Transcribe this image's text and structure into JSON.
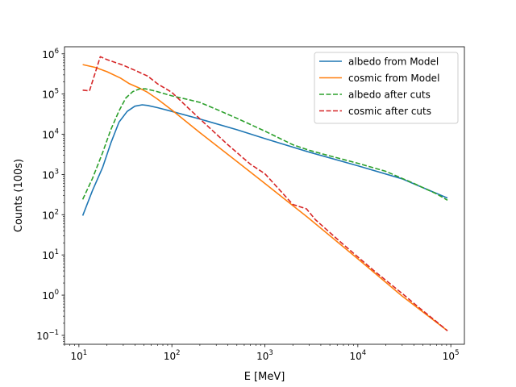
{
  "chart_data": {
    "type": "line",
    "xscale": "log",
    "yscale": "log",
    "xlabel": "E [MeV]",
    "ylabel": "Counts (100s)",
    "xlim": [
      7,
      140000
    ],
    "ylim": [
      0.06,
      1500000
    ],
    "x_ticks": [
      {
        "value": 10,
        "base": "10",
        "exp": "1"
      },
      {
        "value": 100,
        "base": "10",
        "exp": "2"
      },
      {
        "value": 1000,
        "base": "10",
        "exp": "3"
      },
      {
        "value": 10000,
        "base": "10",
        "exp": "4"
      },
      {
        "value": 100000,
        "base": "10",
        "exp": "5"
      }
    ],
    "y_ticks": [
      {
        "value": 0.1,
        "base": "10",
        "exp": "−1"
      },
      {
        "value": 1,
        "base": "10",
        "exp": "0"
      },
      {
        "value": 10,
        "base": "10",
        "exp": "1"
      },
      {
        "value": 100,
        "base": "10",
        "exp": "2"
      },
      {
        "value": 1000,
        "base": "10",
        "exp": "3"
      },
      {
        "value": 10000,
        "base": "10",
        "exp": "4"
      },
      {
        "value": 100000,
        "base": "10",
        "exp": "5"
      },
      {
        "value": 1000000,
        "base": "10",
        "exp": "6"
      }
    ],
    "grid": false,
    "legend_position": "top-right",
    "series": [
      {
        "name": "albedo from Model",
        "color": "#1f77b4",
        "style": "solid",
        "points": [
          [
            11,
            95
          ],
          [
            14,
            400
          ],
          [
            18,
            1500
          ],
          [
            22,
            6000
          ],
          [
            27,
            20000
          ],
          [
            33,
            37000
          ],
          [
            40,
            50000
          ],
          [
            48,
            54000
          ],
          [
            55,
            52000
          ],
          [
            70,
            46000
          ],
          [
            100,
            37000
          ],
          [
            200,
            24000
          ],
          [
            500,
            13000
          ],
          [
            1000,
            7800
          ],
          [
            3000,
            3600
          ],
          [
            10000,
            1650
          ],
          [
            30000,
            780
          ],
          [
            92000,
            260
          ]
        ]
      },
      {
        "name": "cosmic from Model",
        "color": "#ff7f0e",
        "style": "solid",
        "points": [
          [
            11,
            540000
          ],
          [
            15,
            460000
          ],
          [
            20,
            360000
          ],
          [
            28,
            250000
          ],
          [
            35,
            180000
          ],
          [
            45,
            140000
          ],
          [
            55,
            110000
          ],
          [
            70,
            75000
          ],
          [
            100,
            40000
          ],
          [
            200,
            11000
          ],
          [
            500,
            2100
          ],
          [
            1000,
            600
          ],
          [
            3000,
            80
          ],
          [
            10000,
            8
          ],
          [
            30000,
            0.95
          ],
          [
            92000,
            0.13
          ]
        ]
      },
      {
        "name": "albedo after cuts",
        "color": "#2ca02c",
        "style": "dashed",
        "points": [
          [
            11,
            240
          ],
          [
            14,
            800
          ],
          [
            18,
            3500
          ],
          [
            22,
            13000
          ],
          [
            27,
            38000
          ],
          [
            32,
            80000
          ],
          [
            38,
            115000
          ],
          [
            45,
            135000
          ],
          [
            52,
            135000
          ],
          [
            65,
            120000
          ],
          [
            100,
            90000
          ],
          [
            150,
            73000
          ],
          [
            200,
            62000
          ],
          [
            300,
            42000
          ],
          [
            500,
            25000
          ],
          [
            1000,
            12000
          ],
          [
            2000,
            5500
          ],
          [
            3000,
            4000
          ],
          [
            5000,
            2900
          ],
          [
            10000,
            1900
          ],
          [
            20000,
            1200
          ],
          [
            40000,
            600
          ],
          [
            70000,
            330
          ],
          [
            92000,
            230
          ]
        ]
      },
      {
        "name": "cosmic after cuts",
        "color": "#d62728",
        "style": "dashed",
        "points": [
          [
            11,
            125000
          ],
          [
            13,
            120000
          ],
          [
            17,
            850000
          ],
          [
            20,
            720000
          ],
          [
            30,
            520000
          ],
          [
            40,
            390000
          ],
          [
            55,
            280000
          ],
          [
            70,
            180000
          ],
          [
            100,
            110000
          ],
          [
            150,
            45000
          ],
          [
            250,
            15000
          ],
          [
            400,
            5500
          ],
          [
            700,
            1800
          ],
          [
            1000,
            1050
          ],
          [
            2000,
            180
          ],
          [
            2800,
            140
          ],
          [
            3500,
            75
          ],
          [
            7000,
            18
          ],
          [
            15000,
            4
          ],
          [
            30000,
            1.1
          ],
          [
            45000,
            0.5
          ],
          [
            70000,
            0.22
          ],
          [
            92000,
            0.13
          ]
        ]
      }
    ]
  }
}
